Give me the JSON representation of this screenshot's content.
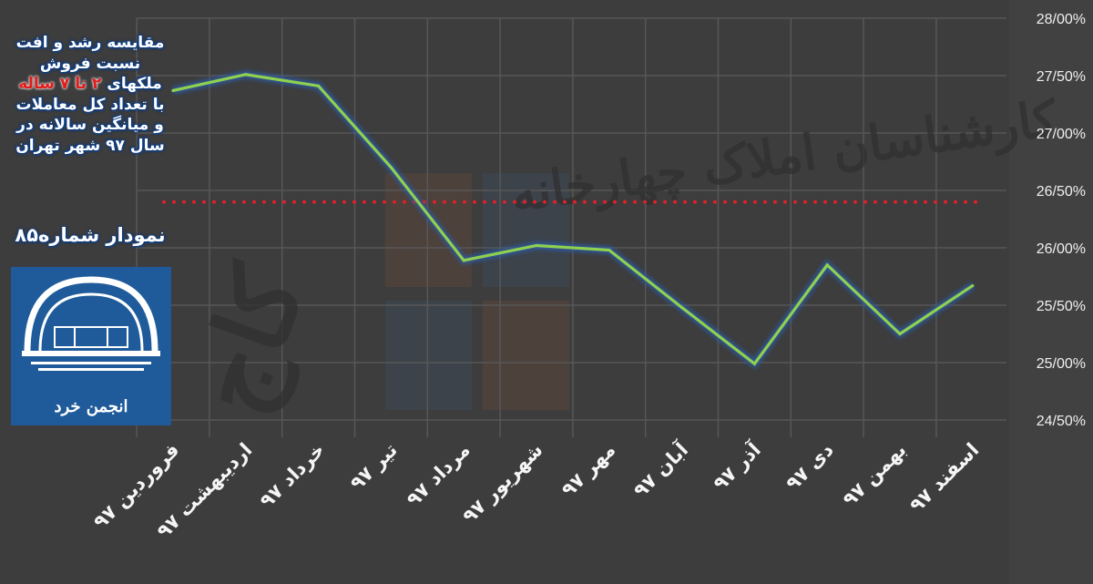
{
  "chart_data": {
    "type": "line",
    "title": "مقایسه رشد و افت نسبت فروش ملکهای ۲ تا ۷ ساله با تعداد کل معاملات و میانگین سالانه در سال ۹۷ شهر تهران",
    "categories": [
      "فروردین ۹۷",
      "اردیبهشت ۹۷",
      "خرداد ۹۷",
      "تیر ۹۷",
      "مرداد ۹۷",
      "شهریور ۹۷",
      "مهر ۹۷",
      "آبان ۹۷",
      "آذر ۹۷",
      "دی ۹۷",
      "بهمن ۹۷",
      "اسفند ۹۷"
    ],
    "series": [
      {
        "values": [
          27.37,
          27.51,
          27.41,
          26.7,
          25.89,
          26.02,
          25.98,
          25.48,
          24.99,
          25.85,
          25.25,
          25.67
        ],
        "color": "#8fd14f",
        "style": "solid"
      },
      {
        "values": [
          26.4,
          26.4,
          26.4,
          26.4,
          26.4,
          26.4,
          26.4,
          26.4,
          26.4,
          26.4,
          26.4,
          26.4
        ],
        "color": "#e0202a",
        "style": "dotted"
      }
    ],
    "yticks": [
      "28/00%",
      "27/50%",
      "27/00%",
      "26/50%",
      "26/00%",
      "25/50%",
      "25/00%",
      "24/50%"
    ],
    "ytick_values": [
      28,
      27.5,
      27,
      26.5,
      26,
      25.5,
      25,
      24.5
    ],
    "ylim": [
      24.5,
      28
    ],
    "yaxis_side": "right",
    "grid": true,
    "xlabel": "",
    "ylabel": ""
  },
  "title_lines": {
    "l1": "مقایسه رشد و افت",
    "l2": "نسبت فروش",
    "l3a": "ملکهای",
    "l3b": "۲ تا ۷ ساله",
    "l4": "با تعداد کل معاملات",
    "l5": "و میانگین سالانه در",
    "l6": "سال ۹۷ شهر تهران"
  },
  "chart_number": "نمودار شماره۸۵",
  "logo_text": "انجمن خرد",
  "watermark": {
    "text1": "کارشناسان املاک چهارخانه",
    "text2": "کاج"
  },
  "colors": {
    "background": "#3d3d3d",
    "line": "#8fd14f",
    "average": "#e0202a",
    "glow": "#2a5db0",
    "logo_bg": "#1f5b9a"
  }
}
